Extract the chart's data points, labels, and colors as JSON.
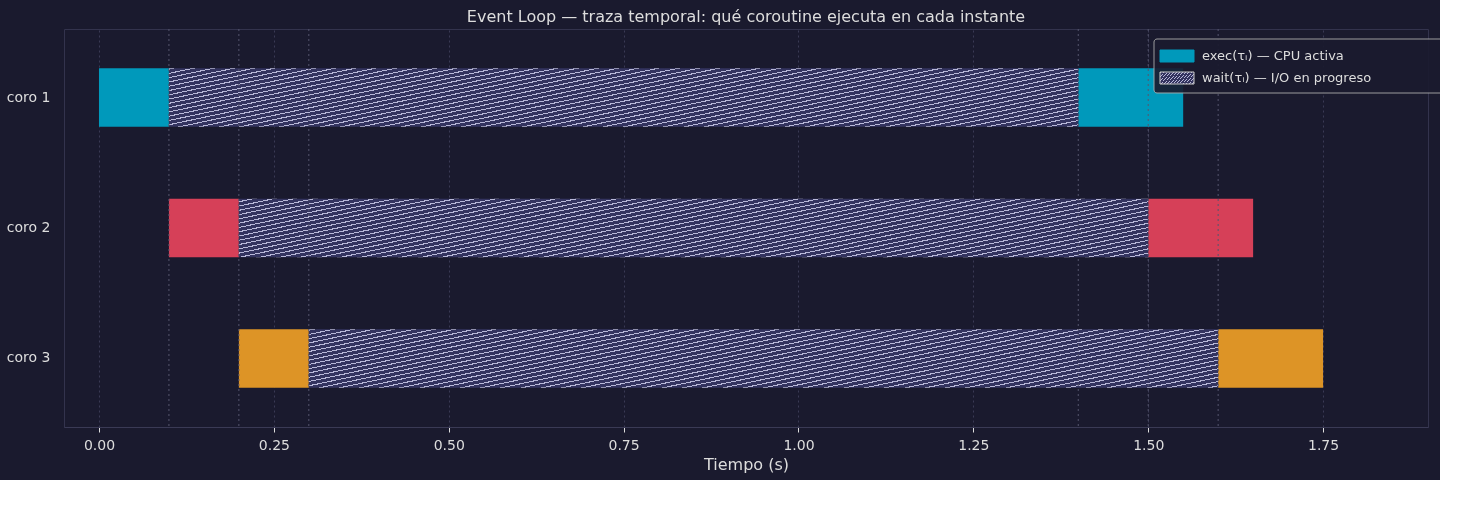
{
  "chart_data": {
    "type": "bar",
    "orientation": "horizontal",
    "title": "Event Loop — traza temporal: qué coroutine ejecuta en cada instante",
    "xlabel": "Tiempo (s)",
    "categories": [
      "coro 1",
      "coro 2",
      "coro 3"
    ],
    "series": [
      {
        "name": "exec(τᵢ) — CPU activa",
        "colors": [
          "#0099bb",
          "#d64058",
          "#dd9426"
        ],
        "base": [
          0,
          0.1,
          0.2
        ],
        "values": [
          0.1,
          0.1,
          0.1
        ]
      },
      {
        "name": "wait(τᵢ) — I/O en progreso",
        "color": "#33335f",
        "base": [
          0.1,
          0.2,
          0.3
        ],
        "values": [
          1.3,
          1.3,
          1.3
        ]
      },
      {
        "colors": [
          "#0099bb",
          "#d64058",
          "#dd9426"
        ],
        "base": [
          1.4,
          1.5,
          1.6
        ],
        "values": [
          0.15,
          0.15,
          0.15
        ]
      }
    ],
    "xlim": [
      -0.05,
      1.9
    ],
    "xticks": [
      {
        "value": 0,
        "label": "0.00"
      },
      {
        "value": 0.25,
        "label": "0.25"
      },
      {
        "value": 0.5,
        "label": "0.50"
      },
      {
        "value": 0.75,
        "label": "0.75"
      },
      {
        "value": 1,
        "label": "1.00"
      },
      {
        "value": 1.25,
        "label": "1.25"
      },
      {
        "value": 1.5,
        "label": "1.50"
      },
      {
        "value": 1.75,
        "label": "1.75"
      }
    ],
    "ref_lines": [
      {
        "axis": "x",
        "value": 0.1
      },
      {
        "axis": "x",
        "value": 0.2
      },
      {
        "axis": "x",
        "value": 0.3
      },
      {
        "axis": "x",
        "value": 1.4
      },
      {
        "axis": "x",
        "value": 1.5
      },
      {
        "axis": "x",
        "value": 1.6
      }
    ],
    "line_style": "dotted",
    "grid": "x",
    "legend": "top right"
  }
}
